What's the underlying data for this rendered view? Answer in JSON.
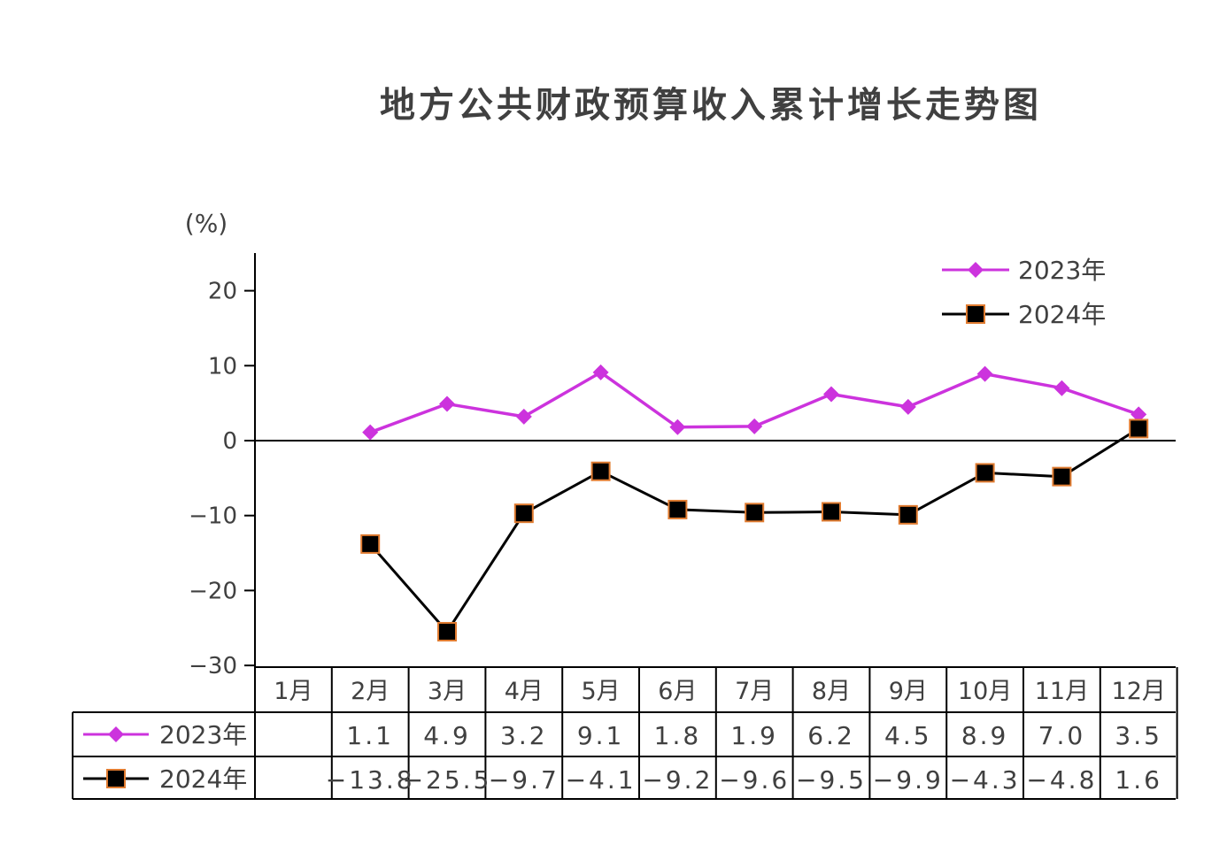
{
  "chart_data": {
    "type": "line",
    "title": "地方公共财政预算收入累计增长走势图",
    "unit": "(%)",
    "categories": [
      "1月",
      "2月",
      "3月",
      "4月",
      "5月",
      "6月",
      "7月",
      "8月",
      "9月",
      "10月",
      "11月",
      "12月"
    ],
    "yticks": [
      "20",
      "10",
      "0",
      "−10",
      "−20",
      "−30"
    ],
    "ytick_values": [
      20,
      10,
      0,
      -10,
      -20,
      -30
    ],
    "ylim": [
      -30,
      25
    ],
    "legend_position": "top-right",
    "series": [
      {
        "name": "2023年",
        "values": [
          null,
          1.1,
          4.9,
          3.2,
          9.1,
          1.8,
          1.9,
          6.2,
          4.5,
          8.9,
          7.0,
          3.5
        ],
        "labels": [
          "",
          "1.1",
          "4.9",
          "3.2",
          "9.1",
          "1.8",
          "1.9",
          "6.2",
          "4.5",
          "8.9",
          "7.0",
          "3.5"
        ],
        "color": "#cc33dd",
        "marker": "diamond"
      },
      {
        "name": "2024年",
        "values": [
          null,
          -13.8,
          -25.5,
          -9.7,
          -4.1,
          -9.2,
          -9.6,
          -9.5,
          -9.9,
          -4.3,
          -4.8,
          1.6
        ],
        "labels": [
          "",
          "−13.8",
          "−25.5",
          "−9.7",
          "−4.1",
          "−9.2",
          "−9.6",
          "−9.5",
          "−9.9",
          "−4.3",
          "−4.8",
          "1.6"
        ],
        "color": "#000000",
        "marker_edge": "#e07b30",
        "marker": "square"
      }
    ]
  }
}
